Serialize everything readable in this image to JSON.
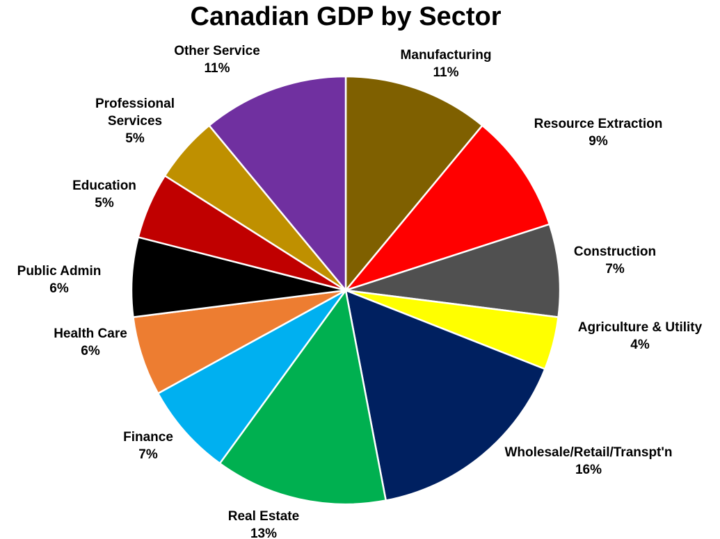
{
  "chart_data": {
    "type": "pie",
    "title": "Canadian GDP by Sector",
    "start_angle_deg": 0,
    "direction": "clockwise",
    "legend": "none",
    "slices": [
      {
        "label": "Manufacturing",
        "value": 11,
        "value_label": "11%",
        "color": "#7F6000"
      },
      {
        "label": "Resource Extraction",
        "value": 9,
        "value_label": "9%",
        "color": "#FF0000"
      },
      {
        "label": "Construction",
        "value": 7,
        "value_label": "7%",
        "color": "#505050"
      },
      {
        "label": "Agriculture & Utility",
        "value": 4,
        "value_label": "4%",
        "color": "#FFFF00"
      },
      {
        "label": "Wholesale/Retail/Transpt'n",
        "value": 16,
        "value_label": "16%",
        "color": "#002060"
      },
      {
        "label": "Real Estate",
        "value": 13,
        "value_label": "13%",
        "color": "#00B050"
      },
      {
        "label": "Finance",
        "value": 7,
        "value_label": "7%",
        "color": "#00B0F0"
      },
      {
        "label": "Health Care",
        "value": 6,
        "value_label": "6%",
        "color": "#ED7D31"
      },
      {
        "label": "Public Admin",
        "value": 6,
        "value_label": "6%",
        "color": "#000000"
      },
      {
        "label": "Education",
        "value": 5,
        "value_label": "5%",
        "color": "#C00000"
      },
      {
        "label": "Professional Services",
        "value": 5,
        "value_label": "5%",
        "color": "#BF9000"
      },
      {
        "label": "Other Service",
        "value": 11,
        "value_label": "11%",
        "color": "#7030A0"
      }
    ]
  }
}
